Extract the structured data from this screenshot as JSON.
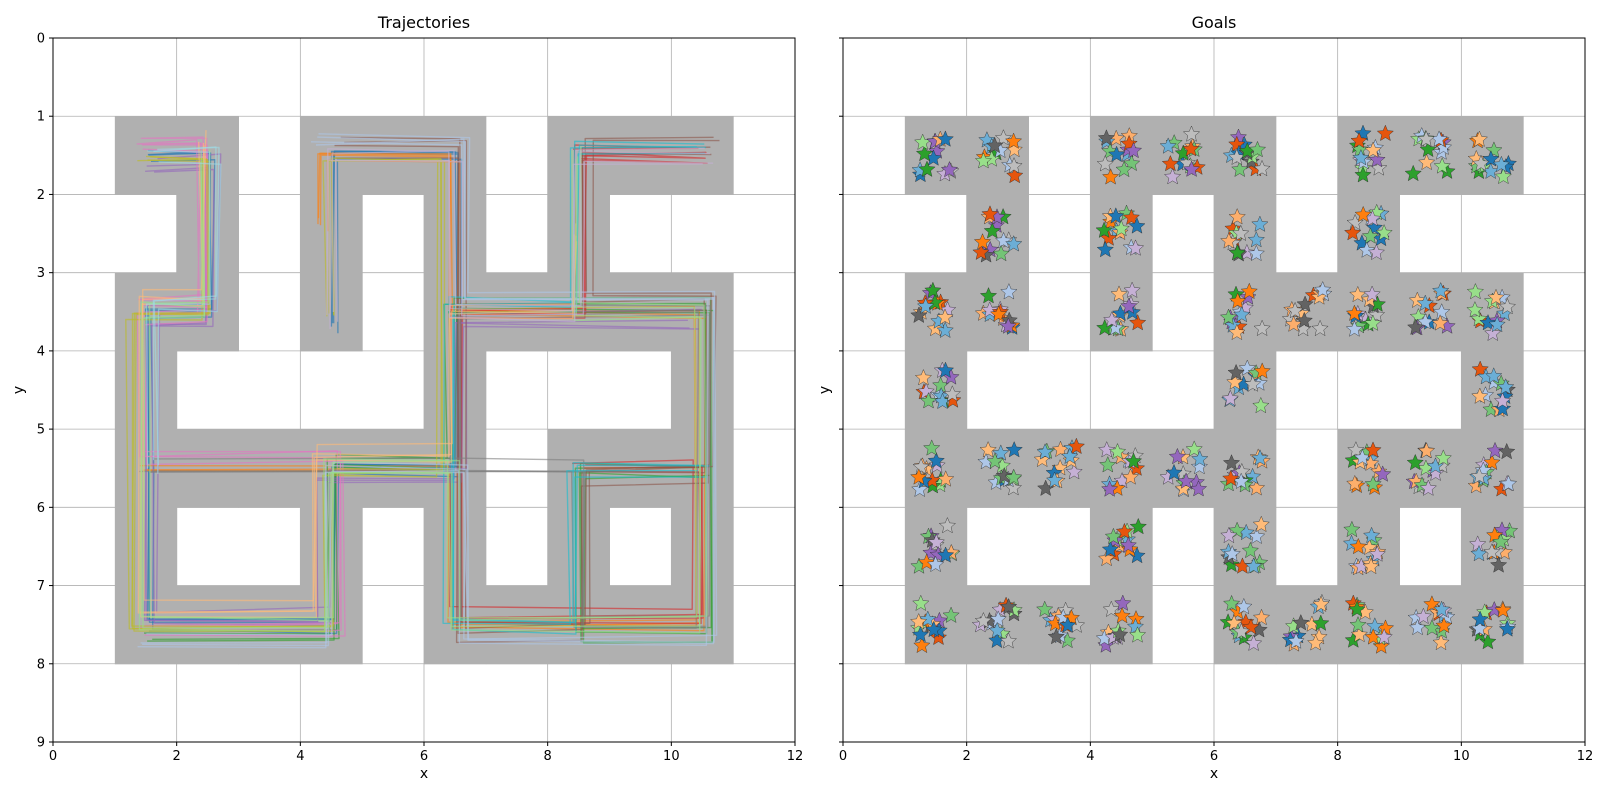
{
  "chart_data": [
    {
      "type": "line",
      "title": "Trajectories",
      "xlabel": "x",
      "ylabel": "y",
      "xlim": [
        0,
        12
      ],
      "ylim": [
        9,
        0
      ],
      "y_inverted": true,
      "xticks": [
        0,
        2,
        4,
        6,
        8,
        10,
        12
      ],
      "yticks": [
        0,
        1,
        2,
        3,
        4,
        5,
        6,
        7,
        8,
        9
      ],
      "grid": true,
      "maze_cells": [
        [
          1,
          1
        ],
        [
          2,
          1
        ],
        [
          4,
          1
        ],
        [
          5,
          1
        ],
        [
          6,
          1
        ],
        [
          8,
          1
        ],
        [
          9,
          1
        ],
        [
          10,
          1
        ],
        [
          2,
          2
        ],
        [
          4,
          2
        ],
        [
          6,
          2
        ],
        [
          8,
          2
        ],
        [
          1,
          3
        ],
        [
          2,
          3
        ],
        [
          4,
          3
        ],
        [
          6,
          3
        ],
        [
          7,
          3
        ],
        [
          8,
          3
        ],
        [
          9,
          3
        ],
        [
          10,
          3
        ],
        [
          1,
          4
        ],
        [
          6,
          4
        ],
        [
          10,
          4
        ],
        [
          1,
          5
        ],
        [
          2,
          5
        ],
        [
          3,
          5
        ],
        [
          4,
          5
        ],
        [
          5,
          5
        ],
        [
          6,
          5
        ],
        [
          8,
          5
        ],
        [
          9,
          5
        ],
        [
          10,
          5
        ],
        [
          1,
          6
        ],
        [
          4,
          6
        ],
        [
          6,
          6
        ],
        [
          8,
          6
        ],
        [
          10,
          6
        ],
        [
          1,
          7
        ],
        [
          2,
          7
        ],
        [
          3,
          7
        ],
        [
          4,
          7
        ],
        [
          6,
          7
        ],
        [
          7,
          7
        ],
        [
          8,
          7
        ],
        [
          9,
          7
        ],
        [
          10,
          7
        ]
      ],
      "maze_color": "#b0b0b0",
      "series": [
        {
          "color": "#1f77b4",
          "values": [
            [
              1.5,
              1.5
            ],
            [
              2.5,
              1.5
            ],
            [
              2.5,
              3.5
            ],
            [
              1.5,
              3.5
            ],
            [
              1.5,
              5.5
            ],
            [
              1.5,
              7.5
            ],
            [
              4.5,
              7.5
            ],
            [
              4.5,
              5.5
            ],
            [
              6.5,
              5.5
            ],
            [
              6.5,
              1.5
            ],
            [
              4.5,
              1.5
            ],
            [
              4.5,
              3.7
            ]
          ]
        },
        {
          "color": "#ff7f0e",
          "values": [
            [
              1.5,
              5.5
            ],
            [
              6.5,
              5.5
            ],
            [
              6.5,
              7.5
            ],
            [
              10.5,
              7.5
            ],
            [
              10.5,
              3.5
            ],
            [
              6.5,
              3.5
            ],
            [
              6.5,
              1.5
            ],
            [
              4.4,
              1.5
            ],
            [
              4.4,
              2.4
            ]
          ]
        },
        {
          "color": "#2ca02c",
          "values": [
            [
              1.5,
              7.6
            ],
            [
              4.5,
              7.6
            ],
            [
              4.5,
              5.4
            ],
            [
              6.4,
              5.4
            ],
            [
              6.4,
              3.4
            ],
            [
              10.6,
              3.4
            ],
            [
              10.6,
              7.6
            ],
            [
              8.5,
              7.6
            ],
            [
              8.5,
              5.5
            ],
            [
              10.5,
              5.5
            ]
          ]
        },
        {
          "color": "#d62728",
          "values": [
            [
              8.5,
              1.5
            ],
            [
              10.5,
              1.5
            ],
            [
              8.5,
              1.5
            ],
            [
              8.5,
              3.5
            ],
            [
              6.5,
              3.5
            ],
            [
              6.5,
              7.4
            ],
            [
              10.4,
              7.4
            ],
            [
              10.4,
              5.5
            ],
            [
              8.5,
              5.5
            ]
          ]
        },
        {
          "color": "#9467bd",
          "values": [
            [
              1.6,
              1.6
            ],
            [
              2.6,
              1.6
            ],
            [
              2.6,
              3.6
            ],
            [
              1.6,
              3.6
            ],
            [
              1.6,
              7.4
            ],
            [
              4.4,
              7.4
            ],
            [
              4.4,
              5.6
            ],
            [
              6.6,
              5.6
            ],
            [
              6.6,
              3.6
            ],
            [
              10.4,
              3.6
            ]
          ]
        },
        {
          "color": "#8c564b",
          "values": [
            [
              4.6,
              1.4
            ],
            [
              6.6,
              1.4
            ],
            [
              6.6,
              7.6
            ],
            [
              8.6,
              7.6
            ],
            [
              8.6,
              5.6
            ],
            [
              10.6,
              5.6
            ],
            [
              10.6,
              3.4
            ],
            [
              8.6,
              3.4
            ],
            [
              8.6,
              1.4
            ],
            [
              10.7,
              1.4
            ]
          ]
        },
        {
          "color": "#e377c2",
          "values": [
            [
              1.4,
              3.4
            ],
            [
              2.4,
              3.4
            ],
            [
              2.4,
              1.4
            ],
            [
              1.4,
              1.4
            ],
            [
              2.4,
              1.4
            ],
            [
              2.4,
              3.6
            ],
            [
              1.4,
              3.6
            ],
            [
              1.4,
              5.4
            ],
            [
              4.6,
              5.4
            ],
            [
              4.6,
              7.6
            ],
            [
              1.4,
              7.6
            ]
          ]
        },
        {
          "color": "#7f7f7f",
          "values": [
            [
              6.5,
              7.5
            ],
            [
              6.5,
              3.5
            ],
            [
              10.5,
              3.5
            ],
            [
              10.5,
              7.5
            ],
            [
              8.5,
              7.5
            ],
            [
              8.5,
              5.5
            ],
            [
              6.5,
              5.5
            ],
            [
              1.5,
              5.5
            ]
          ]
        },
        {
          "color": "#bcbd22",
          "values": [
            [
              1.5,
              1.5
            ],
            [
              2.5,
              1.5
            ],
            [
              2.5,
              3.5
            ],
            [
              1.3,
              3.5
            ],
            [
              1.3,
              7.5
            ],
            [
              4.5,
              7.5
            ],
            [
              4.5,
              5.5
            ],
            [
              6.3,
              5.5
            ],
            [
              6.3,
              1.5
            ],
            [
              4.5,
              1.5
            ],
            [
              4.5,
              3.5
            ]
          ]
        },
        {
          "color": "#17becf",
          "values": [
            [
              10.5,
              5.5
            ],
            [
              8.4,
              5.5
            ],
            [
              8.4,
              7.5
            ],
            [
              6.4,
              7.5
            ],
            [
              6.4,
              3.4
            ],
            [
              8.4,
              3.4
            ],
            [
              8.4,
              1.4
            ],
            [
              10.5,
              1.4
            ]
          ]
        },
        {
          "color": "#aec7e8",
          "values": [
            [
              1.5,
              7.7
            ],
            [
              4.5,
              7.7
            ],
            [
              4.5,
              5.5
            ],
            [
              6.7,
              5.5
            ],
            [
              6.7,
              7.7
            ],
            [
              10.7,
              7.7
            ],
            [
              10.7,
              3.3
            ],
            [
              6.7,
              3.3
            ],
            [
              6.7,
              1.3
            ],
            [
              4.3,
              1.3
            ]
          ]
        },
        {
          "color": "#ffbb78",
          "values": [
            [
              2.5,
              1.3
            ],
            [
              2.5,
              3.3
            ],
            [
              1.5,
              3.3
            ],
            [
              1.5,
              7.3
            ],
            [
              4.3,
              7.3
            ],
            [
              4.3,
              5.3
            ],
            [
              6.5,
              5.3
            ],
            [
              6.5,
              3.5
            ],
            [
              8.5,
              3.5
            ],
            [
              8.5,
              2.5
            ]
          ]
        },
        {
          "color": "#98df8a",
          "values": [
            [
              8.5,
              1.5
            ],
            [
              8.5,
              3.5
            ],
            [
              10.5,
              3.5
            ],
            [
              10.5,
              7.5
            ],
            [
              6.5,
              7.5
            ],
            [
              6.5,
              5.5
            ],
            [
              4.5,
              5.5
            ],
            [
              4.5,
              7.5
            ],
            [
              1.5,
              7.5
            ],
            [
              1.5,
              3.5
            ],
            [
              2.5,
              3.5
            ],
            [
              2.5,
              1.5
            ]
          ]
        },
        {
          "color": "#c5b0d5",
          "values": [
            [
              4.5,
              3.6
            ],
            [
              4.5,
              1.5
            ],
            [
              6.5,
              1.5
            ],
            [
              6.5,
              3.5
            ],
            [
              8.5,
              3.5
            ],
            [
              8.5,
              1.5
            ],
            [
              10.6,
              1.5
            ]
          ]
        },
        {
          "color": "#9edae5",
          "values": [
            [
              1.6,
              5.5
            ],
            [
              1.6,
              3.4
            ],
            [
              2.6,
              3.4
            ],
            [
              2.6,
              1.5
            ],
            [
              1.6,
              1.5
            ]
          ]
        }
      ]
    },
    {
      "type": "scatter",
      "title": "Goals",
      "xlabel": "x",
      "ylabel": "y",
      "xlim": [
        0,
        12
      ],
      "ylim": [
        9,
        0
      ],
      "y_inverted": true,
      "xticks": [
        0,
        2,
        4,
        6,
        8,
        10,
        12
      ],
      "yticks": [
        0,
        1,
        2,
        3,
        4,
        5,
        6,
        7,
        8,
        9
      ],
      "grid": true,
      "marker": "star",
      "maze_cells": [
        [
          1,
          1
        ],
        [
          2,
          1
        ],
        [
          4,
          1
        ],
        [
          5,
          1
        ],
        [
          6,
          1
        ],
        [
          8,
          1
        ],
        [
          9,
          1
        ],
        [
          10,
          1
        ],
        [
          2,
          2
        ],
        [
          4,
          2
        ],
        [
          6,
          2
        ],
        [
          8,
          2
        ],
        [
          1,
          3
        ],
        [
          2,
          3
        ],
        [
          4,
          3
        ],
        [
          6,
          3
        ],
        [
          7,
          3
        ],
        [
          8,
          3
        ],
        [
          9,
          3
        ],
        [
          10,
          3
        ],
        [
          1,
          4
        ],
        [
          6,
          4
        ],
        [
          10,
          4
        ],
        [
          1,
          5
        ],
        [
          2,
          5
        ],
        [
          3,
          5
        ],
        [
          4,
          5
        ],
        [
          5,
          5
        ],
        [
          6,
          5
        ],
        [
          8,
          5
        ],
        [
          9,
          5
        ],
        [
          10,
          5
        ],
        [
          1,
          6
        ],
        [
          4,
          6
        ],
        [
          6,
          6
        ],
        [
          8,
          6
        ],
        [
          10,
          6
        ],
        [
          1,
          7
        ],
        [
          2,
          7
        ],
        [
          3,
          7
        ],
        [
          4,
          7
        ],
        [
          6,
          7
        ],
        [
          7,
          7
        ],
        [
          8,
          7
        ],
        [
          9,
          7
        ],
        [
          10,
          7
        ]
      ],
      "maze_color": "#b0b0b0",
      "goal_cells": [
        [
          1,
          1
        ],
        [
          2,
          1
        ],
        [
          4,
          1
        ],
        [
          5,
          1
        ],
        [
          6,
          1
        ],
        [
          8,
          1
        ],
        [
          9,
          1
        ],
        [
          10,
          1
        ],
        [
          2,
          2
        ],
        [
          4,
          2
        ],
        [
          6,
          2
        ],
        [
          8,
          2
        ],
        [
          1,
          3
        ],
        [
          2,
          3
        ],
        [
          4,
          3
        ],
        [
          6,
          3
        ],
        [
          7,
          3
        ],
        [
          8,
          3
        ],
        [
          9,
          3
        ],
        [
          10,
          3
        ],
        [
          1,
          4
        ],
        [
          6,
          4
        ],
        [
          10,
          4
        ],
        [
          1,
          5
        ],
        [
          2,
          5
        ],
        [
          3,
          5
        ],
        [
          4,
          5
        ],
        [
          5,
          5
        ],
        [
          6,
          5
        ],
        [
          8,
          5
        ],
        [
          9,
          5
        ],
        [
          10,
          5
        ],
        [
          1,
          6
        ],
        [
          4,
          6
        ],
        [
          6,
          6
        ],
        [
          8,
          6
        ],
        [
          10,
          6
        ],
        [
          1,
          7
        ],
        [
          2,
          7
        ],
        [
          3,
          7
        ],
        [
          4,
          7
        ],
        [
          6,
          7
        ],
        [
          7,
          7
        ],
        [
          8,
          7
        ],
        [
          9,
          7
        ],
        [
          10,
          7
        ]
      ],
      "stars_per_cell": 14,
      "star_palette": [
        "#1f77b4",
        "#aec7e8",
        "#ff7f0e",
        "#ffbb78",
        "#2ca02c",
        "#98df8a",
        "#9467bd",
        "#c5b0d5",
        "#636363",
        "#bdbdbd",
        "#e6550d",
        "#fdae6b",
        "#74c476",
        "#6baed6"
      ]
    }
  ]
}
